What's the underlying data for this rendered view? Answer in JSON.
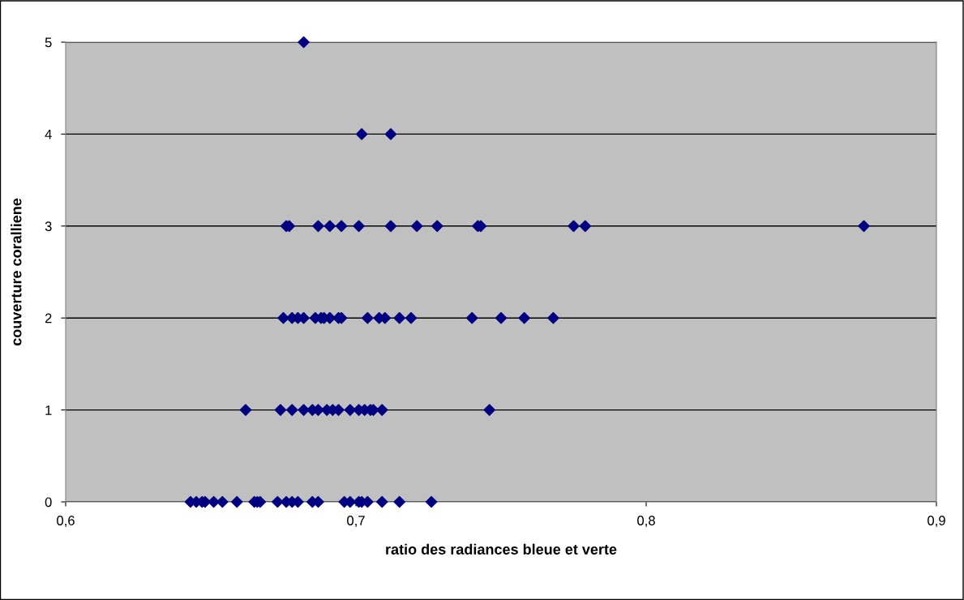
{
  "chart_data": {
    "type": "scatter",
    "xlabel": "ratio des radiances bleue et verte",
    "ylabel": "couverture coralliene",
    "series": [
      {
        "color": "#000080",
        "x": [
          0.643,
          0.645,
          0.647,
          0.648,
          0.651,
          0.654,
          0.659,
          0.665,
          0.666,
          0.667,
          0.673,
          0.676,
          0.678,
          0.68,
          0.685,
          0.687,
          0.696,
          0.698,
          0.701,
          0.702,
          0.704,
          0.709,
          0.715,
          0.726,
          0.662,
          0.674,
          0.678,
          0.682,
          0.685,
          0.687,
          0.69,
          0.692,
          0.694,
          0.698,
          0.701,
          0.703,
          0.705,
          0.706,
          0.709,
          0.746,
          0.675,
          0.678,
          0.68,
          0.682,
          0.686,
          0.688,
          0.689,
          0.691,
          0.694,
          0.695,
          0.704,
          0.708,
          0.71,
          0.715,
          0.719,
          0.74,
          0.75,
          0.758,
          0.768,
          0.676,
          0.677,
          0.687,
          0.691,
          0.695,
          0.701,
          0.712,
          0.721,
          0.728,
          0.742,
          0.743,
          0.775,
          0.779,
          0.875,
          0.702,
          0.712,
          0.682
        ],
        "values": [
          0,
          0,
          0,
          0,
          0,
          0,
          0,
          0,
          0,
          0,
          0,
          0,
          0,
          0,
          0,
          0,
          0,
          0,
          0,
          0,
          0,
          0,
          0,
          0,
          1,
          1,
          1,
          1,
          1,
          1,
          1,
          1,
          1,
          1,
          1,
          1,
          1,
          1,
          1,
          1,
          2,
          2,
          2,
          2,
          2,
          2,
          2,
          2,
          2,
          2,
          2,
          2,
          2,
          2,
          2,
          2,
          2,
          2,
          2,
          3,
          3,
          3,
          3,
          3,
          3,
          3,
          3,
          3,
          3,
          3,
          3,
          3,
          3,
          4,
          4,
          5
        ]
      }
    ],
    "xlim": [
      0.6,
      0.9
    ],
    "xticks": [
      {
        "value": 0.6,
        "label": "0,6"
      },
      {
        "value": 0.7,
        "label": "0,7"
      },
      {
        "value": 0.8,
        "label": "0,8"
      },
      {
        "value": 0.9,
        "label": "0,9"
      }
    ],
    "ylim": [
      0,
      5
    ],
    "yticks": [
      0,
      1,
      2,
      3,
      4,
      5
    ],
    "grid": "y",
    "marker": "diamond"
  }
}
